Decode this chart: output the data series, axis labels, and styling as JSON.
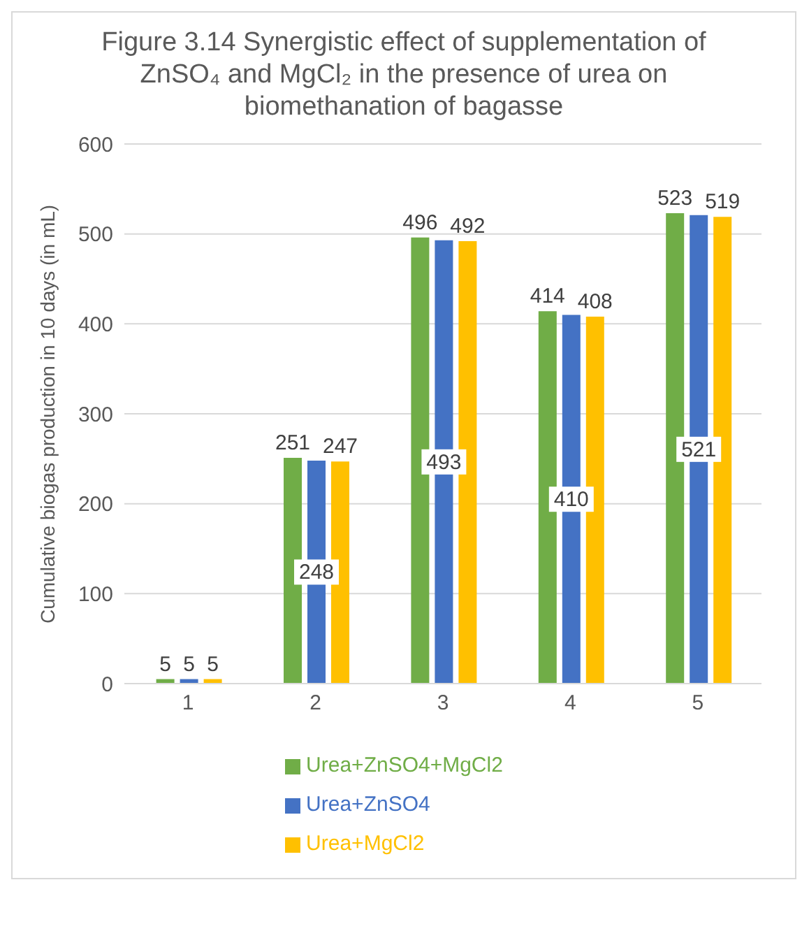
{
  "chart_data": {
    "type": "bar",
    "title": "Figure 3.14 Synergistic effect of supplementation of ZnSO₄ and MgCl₂ in the presence of urea on biomethanation of bagasse",
    "ylabel": "Cumulative biogas production in 10 days (in mL)",
    "categories": [
      "1",
      "2",
      "3",
      "4",
      "5"
    ],
    "series": [
      {
        "name": "Urea+ZnSO4+MgCl2",
        "color": "#70ad47",
        "values": [
          5,
          251,
          496,
          414,
          523
        ]
      },
      {
        "name": "Urea+ZnSO4",
        "color": "#4472c4",
        "values": [
          5,
          248,
          493,
          410,
          521
        ]
      },
      {
        "name": "Urea+MgCl2",
        "color": "#ffc000",
        "values": [
          5,
          247,
          492,
          408,
          519
        ]
      }
    ],
    "ylim": [
      0,
      600
    ],
    "yticks": [
      0,
      100,
      200,
      300,
      400,
      500,
      600
    ],
    "grid": "y",
    "legend": "bottom",
    "data_labels": true
  }
}
